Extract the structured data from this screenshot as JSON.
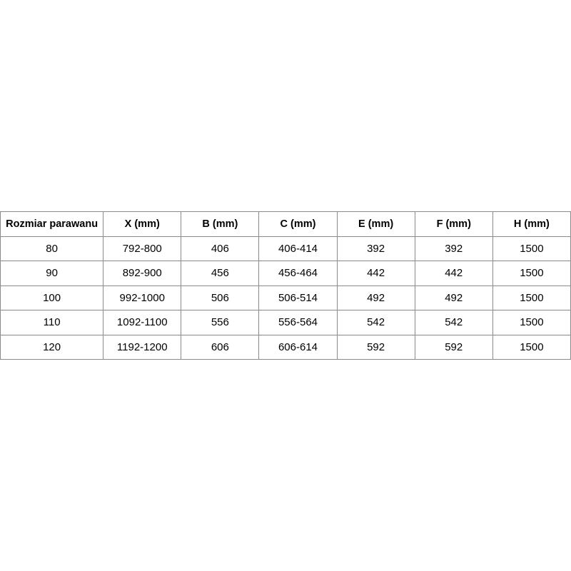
{
  "table": {
    "headers": [
      "Rozmiar parawanu",
      "X (mm)",
      "B (mm)",
      "C (mm)",
      "E (mm)",
      "F (mm)",
      "H (mm)"
    ],
    "rows": [
      [
        "80",
        "792-800",
        "406",
        "406-414",
        "392",
        "392",
        "1500"
      ],
      [
        "90",
        "892-900",
        "456",
        "456-464",
        "442",
        "442",
        "1500"
      ],
      [
        "100",
        "992-1000",
        "506",
        "506-514",
        "492",
        "492",
        "1500"
      ],
      [
        "110",
        "1092-1100",
        "556",
        "556-564",
        "542",
        "542",
        "1500"
      ],
      [
        "120",
        "1192-1200",
        "606",
        "606-614",
        "592",
        "592",
        "1500"
      ]
    ]
  }
}
